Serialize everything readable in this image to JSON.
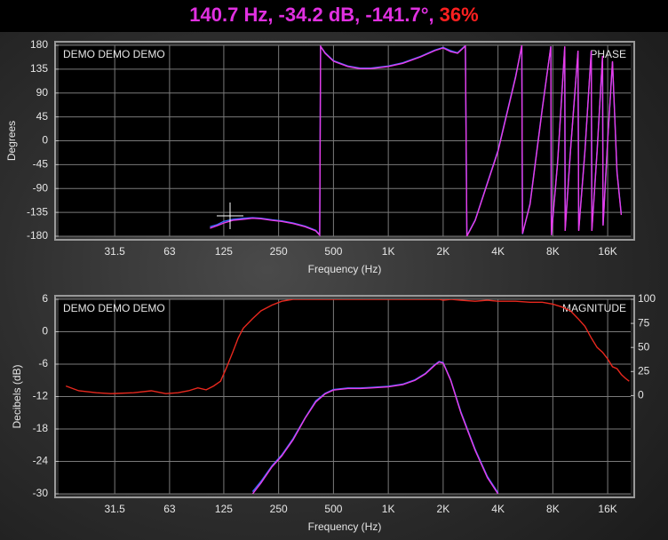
{
  "readout": {
    "text": "140.7 Hz, -34.2 dB, -141.7°,",
    "coherence": "36%"
  },
  "chart_data": [
    {
      "type": "line",
      "title": "PHASE",
      "annotation": "DEMO DEMO DEMO",
      "x_label": "Frequency (Hz)",
      "y_label": "Degrees",
      "log_x": true,
      "grid": true,
      "xlim": [
        15.5,
        21400
      ],
      "xticks": [
        31.5,
        63,
        125,
        250,
        500,
        {
          "value": 1000,
          "label": "1K"
        },
        {
          "value": 2000,
          "label": "2K"
        },
        {
          "value": 4000,
          "label": "4K"
        },
        {
          "value": 8000,
          "label": "8K"
        },
        {
          "value": 16000,
          "label": "16K"
        }
      ],
      "ylim": [
        -180,
        180
      ],
      "yticks": [
        -180,
        -135,
        -90,
        -45,
        0,
        45,
        90,
        135,
        180
      ],
      "x": [
        105,
        115,
        125,
        140,
        160,
        180,
        200,
        230,
        260,
        300,
        350,
        400,
        420,
        425,
        450,
        500,
        600,
        700,
        800,
        1000,
        1200,
        1500,
        1800,
        2000,
        2200,
        2400,
        2600,
        2650,
        2700,
        3000,
        4000,
        5000,
        5400,
        5450,
        6000,
        7000,
        7800,
        7850,
        8500,
        9300,
        9350,
        10000,
        11000,
        11100,
        12000,
        13000,
        13100,
        14000,
        15000,
        15100,
        16000,
        17000,
        18000,
        19000
      ],
      "series": [
        {
          "color": "#3a6cff",
          "values": [
            -162,
            -158,
            -152,
            -148,
            -146,
            -145,
            -146,
            -149,
            -151,
            -155,
            -161,
            -169,
            -177,
            178,
            166,
            151,
            141,
            137,
            137,
            141,
            147,
            159,
            171,
            176,
            170,
            166,
            177,
            179,
            -179,
            -149,
            -18,
            122,
            179,
            -176,
            -118,
            62,
            178,
            -178,
            -38,
            177,
            -168,
            -18,
            168,
            -168,
            -18,
            168,
            -168,
            -18,
            158,
            -158,
            2,
            148,
            -58,
            -138
          ]
        },
        {
          "color": "#e83ce8",
          "values": [
            -165,
            -160,
            -155,
            -150,
            -148,
            -146,
            -147,
            -150,
            -152,
            -156,
            -162,
            -170,
            -178,
            178,
            165,
            150,
            140,
            136,
            136,
            140,
            146,
            158,
            170,
            175,
            168,
            165,
            176,
            179,
            -180,
            -150,
            -20,
            120,
            180,
            -175,
            -120,
            60,
            178,
            -178,
            -40,
            178,
            -170,
            -20,
            170,
            -170,
            -20,
            170,
            -170,
            -20,
            160,
            -160,
            0,
            150,
            -60,
            -140
          ]
        }
      ]
    },
    {
      "type": "line",
      "title": "MAGNITUDE",
      "annotation": "DEMO DEMO DEMO",
      "x_label": "Frequency (Hz)",
      "y_label": "Decibels (dB)",
      "log_x": true,
      "grid": true,
      "xlim": [
        15.5,
        21400
      ],
      "xticks": [
        31.5,
        63,
        125,
        250,
        500,
        {
          "value": 1000,
          "label": "1K"
        },
        {
          "value": 2000,
          "label": "2K"
        },
        {
          "value": 4000,
          "label": "4K"
        },
        {
          "value": 8000,
          "label": "8K"
        },
        {
          "value": 16000,
          "label": "16K"
        }
      ],
      "ylim": [
        -30,
        6
      ],
      "yticks": [
        -30,
        -24,
        -18,
        -12,
        -6,
        0,
        6
      ],
      "y2lim": [
        -102,
        100
      ],
      "y2ticks": [
        0,
        25,
        50,
        75,
        100
      ],
      "x": [
        17,
        20,
        25,
        30,
        40,
        50,
        60,
        70,
        80,
        90,
        100,
        110,
        120,
        130,
        140,
        150,
        160,
        180,
        200,
        230,
        260,
        300,
        350,
        400,
        450,
        500,
        600,
        700,
        800,
        1000,
        1200,
        1400,
        1600,
        1800,
        1900,
        2000,
        2200,
        2500,
        3000,
        3500,
        4000,
        5000,
        6000,
        7000,
        8000,
        9000,
        10000,
        11000,
        12000,
        13000,
        14000,
        15000,
        16000,
        17000,
        18000,
        19000,
        20000,
        21000
      ],
      "series": [
        {
          "color": "#e8281e",
          "axis": "y2",
          "values": [
            10,
            5,
            3,
            2,
            3,
            5,
            2,
            3,
            5,
            8,
            6,
            10,
            15,
            30,
            45,
            60,
            70,
            80,
            88,
            94,
            98,
            100,
            100,
            100,
            100,
            100,
            100,
            100,
            100,
            100,
            100,
            100,
            100,
            100,
            100,
            99,
            100,
            99,
            98,
            99,
            98,
            98,
            97,
            97,
            95,
            92,
            88,
            80,
            72,
            60,
            50,
            45,
            38,
            30,
            28,
            22,
            18,
            15
          ]
        },
        {
          "color": "#3a6cff",
          "values": [
            null,
            null,
            null,
            null,
            null,
            null,
            null,
            null,
            null,
            null,
            null,
            null,
            null,
            null,
            null,
            null,
            null,
            -29.6,
            -27.7,
            -24.8,
            -22.8,
            -19.8,
            -15.9,
            -12.8,
            -11.4,
            -10.7,
            -10.4,
            -10.4,
            -10.3,
            -10.1,
            -9.7,
            -8.9,
            -7.7,
            -6.1,
            -5.5,
            -5.7,
            -8.9,
            -14.8,
            -21.8,
            -26.8,
            -29.8,
            null,
            null,
            null,
            null,
            null,
            null,
            null,
            null,
            null,
            null,
            null,
            null,
            null,
            null,
            null,
            null,
            null
          ]
        },
        {
          "color": "#e83ce8",
          "values": [
            null,
            null,
            null,
            null,
            null,
            null,
            null,
            null,
            null,
            null,
            null,
            null,
            null,
            null,
            null,
            null,
            null,
            -30,
            -28,
            -25,
            -23,
            -20,
            -16,
            -13,
            -11.5,
            -10.8,
            -10.5,
            -10.5,
            -10.4,
            -10.2,
            -9.8,
            -9,
            -7.8,
            -6.2,
            -5.6,
            -5.8,
            -9,
            -15,
            -22,
            -27,
            -30,
            null,
            null,
            null,
            null,
            null,
            null,
            null,
            null,
            null,
            null,
            null,
            null,
            null,
            null,
            null,
            null,
            null
          ]
        }
      ]
    }
  ]
}
